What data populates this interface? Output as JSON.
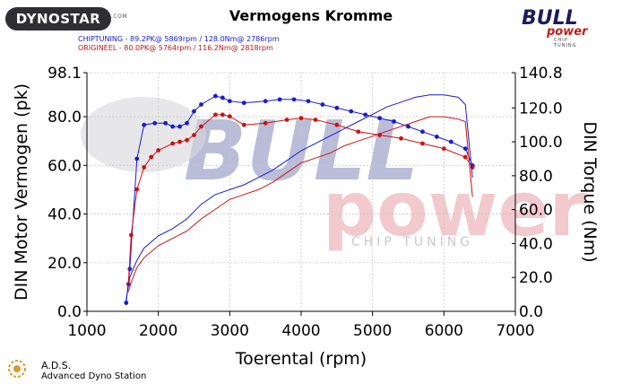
{
  "header": {
    "logo_left": "DYNOSTAR",
    "title": "Vermogens Kromme",
    "legend_tuned": "CHIPTUNING  - 89.2PK@ 5869rpm / 128.0Nm@ 2786rpm",
    "legend_stock": "ORIGINEEL  - 80.0PK@ 5764rpm / 116.2Nm@ 2818rpm",
    "logo_right_word1": "BULL",
    "logo_right_word2": "power",
    "logo_right_word3": "CHIP TUNING"
  },
  "watermark": {
    "word1": "BULL",
    "word2": "power",
    "word3": "CHIP TUNING"
  },
  "footer": {
    "ads": "A.D.S.",
    "ads_sub": "Advanced Dyno Station"
  },
  "colors": {
    "tuned": "#1a1ad0",
    "stock": "#d01010",
    "watermark_blue": "#b9bdd8",
    "watermark_red": "#f2c9cc"
  },
  "chart_data": {
    "type": "line",
    "xlabel": "Toerental (rpm)",
    "ylabel_left": "DIN Motor Vermogen (pk)",
    "ylabel_right": "DIN Torque (Nm)",
    "xlim": [
      1000,
      7000
    ],
    "xticks": [
      "1000",
      "2000",
      "3000",
      "4000",
      "5000",
      "6000",
      "7000"
    ],
    "ylim_left": [
      0,
      98.1
    ],
    "yticks_left": [
      "0.0",
      "20.0",
      "40.0",
      "60.0",
      "80.0",
      "98.1"
    ],
    "ylim_right": [
      0,
      140.8
    ],
    "yticks_right": [
      "0.0",
      "20.0",
      "40.0",
      "60.0",
      "80.0",
      "100.0",
      "120.0",
      "140.8"
    ],
    "series": [
      {
        "name": "CHIPTUNING",
        "kind": "torque",
        "color": "#1a1ad0",
        "x": [
          1550,
          1600,
          1700,
          1800,
          1950,
          2100,
          2200,
          2300,
          2400,
          2500,
          2600,
          2800,
          2900,
          3000,
          3200,
          3500,
          3700,
          3900,
          4100,
          4300,
          4500,
          4700,
          4900,
          5100,
          5300,
          5500,
          5700,
          5900,
          6100,
          6300,
          6400
        ],
        "y": [
          5,
          25,
          90,
          110,
          111,
          111,
          109,
          109,
          111,
          118,
          122,
          127,
          126,
          124,
          123,
          124,
          125,
          125,
          124,
          122,
          120,
          118,
          116,
          114,
          112,
          109,
          106,
          103,
          100,
          96,
          86
        ]
      },
      {
        "name": "ORIGINEEL",
        "kind": "torque",
        "color": "#d01010",
        "x": [
          1580,
          1620,
          1700,
          1800,
          1900,
          2000,
          2200,
          2300,
          2400,
          2500,
          2600,
          2800,
          2900,
          3000,
          3200,
          3500,
          3800,
          4000,
          4200,
          4500,
          4800,
          5100,
          5400,
          5700,
          6000,
          6300,
          6400
        ],
        "y": [
          16,
          45,
          72,
          85,
          91,
          95,
          99,
          100,
          101,
          104,
          109,
          116,
          116,
          115,
          110,
          111,
          113,
          114,
          113,
          110,
          106,
          104,
          102,
          99,
          96,
          91,
          85
        ]
      },
      {
        "name": "CHIPTUNING",
        "kind": "power",
        "color": "#1a1ad0",
        "x": [
          1540,
          1600,
          1700,
          1800,
          2000,
          2200,
          2400,
          2600,
          2800,
          3000,
          3200,
          3400,
          3600,
          3800,
          4000,
          4200,
          4400,
          4600,
          4800,
          5000,
          5200,
          5400,
          5600,
          5800,
          6000,
          6200,
          6300,
          6400
        ],
        "y": [
          3,
          14,
          21,
          26,
          31,
          34,
          38,
          44,
          48,
          50,
          52,
          55,
          58,
          62,
          66,
          69,
          72,
          75,
          78,
          81,
          84,
          86,
          88,
          89,
          89,
          88,
          85,
          55
        ]
      },
      {
        "name": "ORIGINEEL",
        "kind": "power",
        "color": "#d01010",
        "x": [
          1580,
          1620,
          1700,
          1800,
          2000,
          2200,
          2400,
          2600,
          2800,
          3000,
          3200,
          3400,
          3600,
          3800,
          4000,
          4200,
          4400,
          4600,
          4800,
          5000,
          5200,
          5400,
          5600,
          5800,
          6000,
          6200,
          6300,
          6400
        ],
        "y": [
          8,
          12,
          18,
          22,
          27,
          30,
          33,
          38,
          42,
          46,
          48,
          50,
          53,
          57,
          61,
          63,
          65,
          68,
          70,
          72,
          74,
          76,
          78,
          80,
          80,
          79,
          78,
          47
        ]
      }
    ]
  }
}
